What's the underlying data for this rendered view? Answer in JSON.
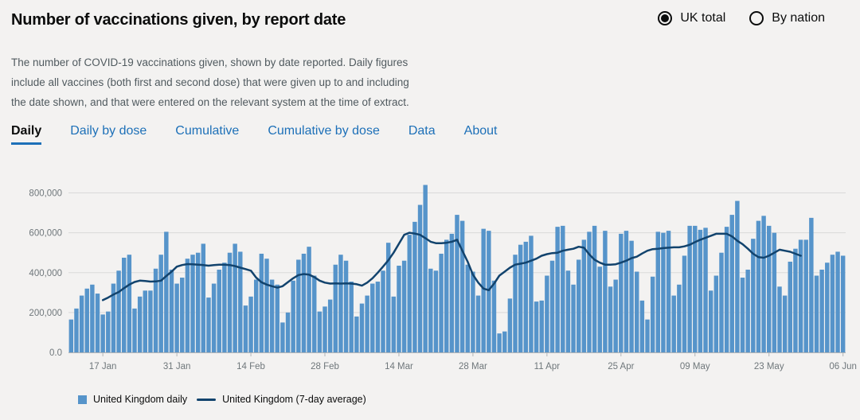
{
  "title": "Number of vaccinations given, by report date",
  "radios": [
    {
      "label": "UK total",
      "selected": true
    },
    {
      "label": "By nation",
      "selected": false
    }
  ],
  "description": "The number of COVID-19 vaccinations given, shown by date reported. Daily figures include all vaccines (both first and second dose) that were given up to and including the date shown, and that were entered on the relevant system at the time of extract.",
  "tabs": [
    {
      "label": "Daily",
      "active": true
    },
    {
      "label": "Daily by dose",
      "active": false
    },
    {
      "label": "Cumulative",
      "active": false
    },
    {
      "label": "Cumulative by dose",
      "active": false
    },
    {
      "label": "Data",
      "active": false
    },
    {
      "label": "About",
      "active": false
    }
  ],
  "colors": {
    "bar": "#5694ca",
    "line": "#12436d",
    "grid": "#d9d9d9",
    "axis_text": "#6f777b"
  },
  "chart_data": {
    "type": "bar",
    "xlabel": "",
    "ylabel": "",
    "ylim": [
      0,
      850000
    ],
    "yticks": [
      0,
      200000,
      400000,
      600000,
      800000
    ],
    "ytick_labels": [
      "0.0",
      "200,000",
      "400,000",
      "600,000",
      "800,000"
    ],
    "grid": true,
    "legend_position": "bottom-left",
    "start_date": "2021-01-11",
    "xtick_labels": [
      {
        "date": "2021-01-17",
        "label": "17 Jan"
      },
      {
        "date": "2021-01-31",
        "label": "31 Jan"
      },
      {
        "date": "2021-02-14",
        "label": "14 Feb"
      },
      {
        "date": "2021-02-28",
        "label": "28 Feb"
      },
      {
        "date": "2021-03-14",
        "label": "14 Mar"
      },
      {
        "date": "2021-03-28",
        "label": "28 Mar"
      },
      {
        "date": "2021-04-11",
        "label": "11 Apr"
      },
      {
        "date": "2021-04-25",
        "label": "25 Apr"
      },
      {
        "date": "2021-05-09",
        "label": "09 May"
      },
      {
        "date": "2021-05-23",
        "label": "23 May"
      },
      {
        "date": "2021-06-06",
        "label": "06 Jun"
      }
    ],
    "series": [
      {
        "name": "United Kingdom daily",
        "kind": "bar",
        "values": [
          165000,
          220000,
          285000,
          320000,
          340000,
          295000,
          190000,
          205000,
          345000,
          410000,
          475000,
          490000,
          220000,
          280000,
          310000,
          310000,
          420000,
          490000,
          605000,
          415000,
          345000,
          375000,
          470000,
          490000,
          500000,
          545000,
          275000,
          345000,
          415000,
          450000,
          500000,
          545000,
          505000,
          235000,
          280000,
          365000,
          495000,
          470000,
          365000,
          340000,
          150000,
          200000,
          360000,
          465000,
          495000,
          530000,
          385000,
          205000,
          230000,
          265000,
          440000,
          490000,
          460000,
          355000,
          180000,
          245000,
          285000,
          345000,
          355000,
          410000,
          550000,
          280000,
          435000,
          460000,
          590000,
          655000,
          740000,
          840000,
          420000,
          410000,
          495000,
          565000,
          595000,
          690000,
          660000,
          440000,
          405000,
          285000,
          620000,
          610000,
          360000,
          95000,
          105000,
          270000,
          490000,
          540000,
          555000,
          585000,
          255000,
          260000,
          385000,
          460000,
          630000,
          635000,
          410000,
          340000,
          465000,
          565000,
          605000,
          635000,
          430000,
          610000,
          330000,
          365000,
          595000,
          610000,
          560000,
          405000,
          260000,
          165000,
          380000,
          605000,
          600000,
          610000,
          285000,
          340000,
          485000,
          635000,
          635000,
          615000,
          625000,
          310000,
          385000,
          500000,
          630000,
          690000,
          760000,
          375000,
          415000,
          570000,
          660000,
          685000,
          635000,
          600000,
          330000,
          285000,
          455000,
          520000,
          565000,
          565000,
          675000,
          385000,
          415000,
          450000,
          490000,
          505000,
          485000
        ]
      },
      {
        "name": "United Kingdom (7-day average)",
        "kind": "line",
        "start_index": 6,
        "values": [
          262000,
          275000,
          290000,
          303000,
          322000,
          340000,
          353000,
          360000,
          358000,
          355000,
          356000,
          360000,
          383000,
          405000,
          430000,
          438000,
          443000,
          442000,
          440000,
          438000,
          435000,
          438000,
          440000,
          440000,
          438000,
          433000,
          425000,
          418000,
          410000,
          375000,
          352000,
          340000,
          332000,
          325000,
          332000,
          352000,
          372000,
          388000,
          393000,
          390000,
          378000,
          360000,
          350000,
          345000,
          346000,
          345000,
          346000,
          345000,
          342000,
          335000,
          350000,
          372000,
          400000,
          430000,
          462000,
          500000,
          545000,
          590000,
          600000,
          596000,
          590000,
          573000,
          555000,
          548000,
          548000,
          550000,
          555000,
          565000,
          510000,
          455000,
          390000,
          350000,
          320000,
          312000,
          345000,
          385000,
          405000,
          425000,
          440000,
          445000,
          450000,
          460000,
          470000,
          485000,
          493000,
          498000,
          500000,
          510000,
          515000,
          520000,
          530000,
          525000,
          492000,
          465000,
          450000,
          440000,
          440000,
          442000,
          450000,
          460000,
          473000,
          480000,
          496000,
          510000,
          518000,
          520000,
          523000,
          525000,
          527000,
          527000,
          532000,
          540000,
          553000,
          565000,
          575000,
          585000,
          595000,
          595000,
          595000,
          582000,
          560000,
          543000,
          520000,
          495000,
          478000,
          475000,
          485000,
          500000,
          515000,
          510000,
          505000,
          495000,
          485000
        ]
      }
    ]
  }
}
